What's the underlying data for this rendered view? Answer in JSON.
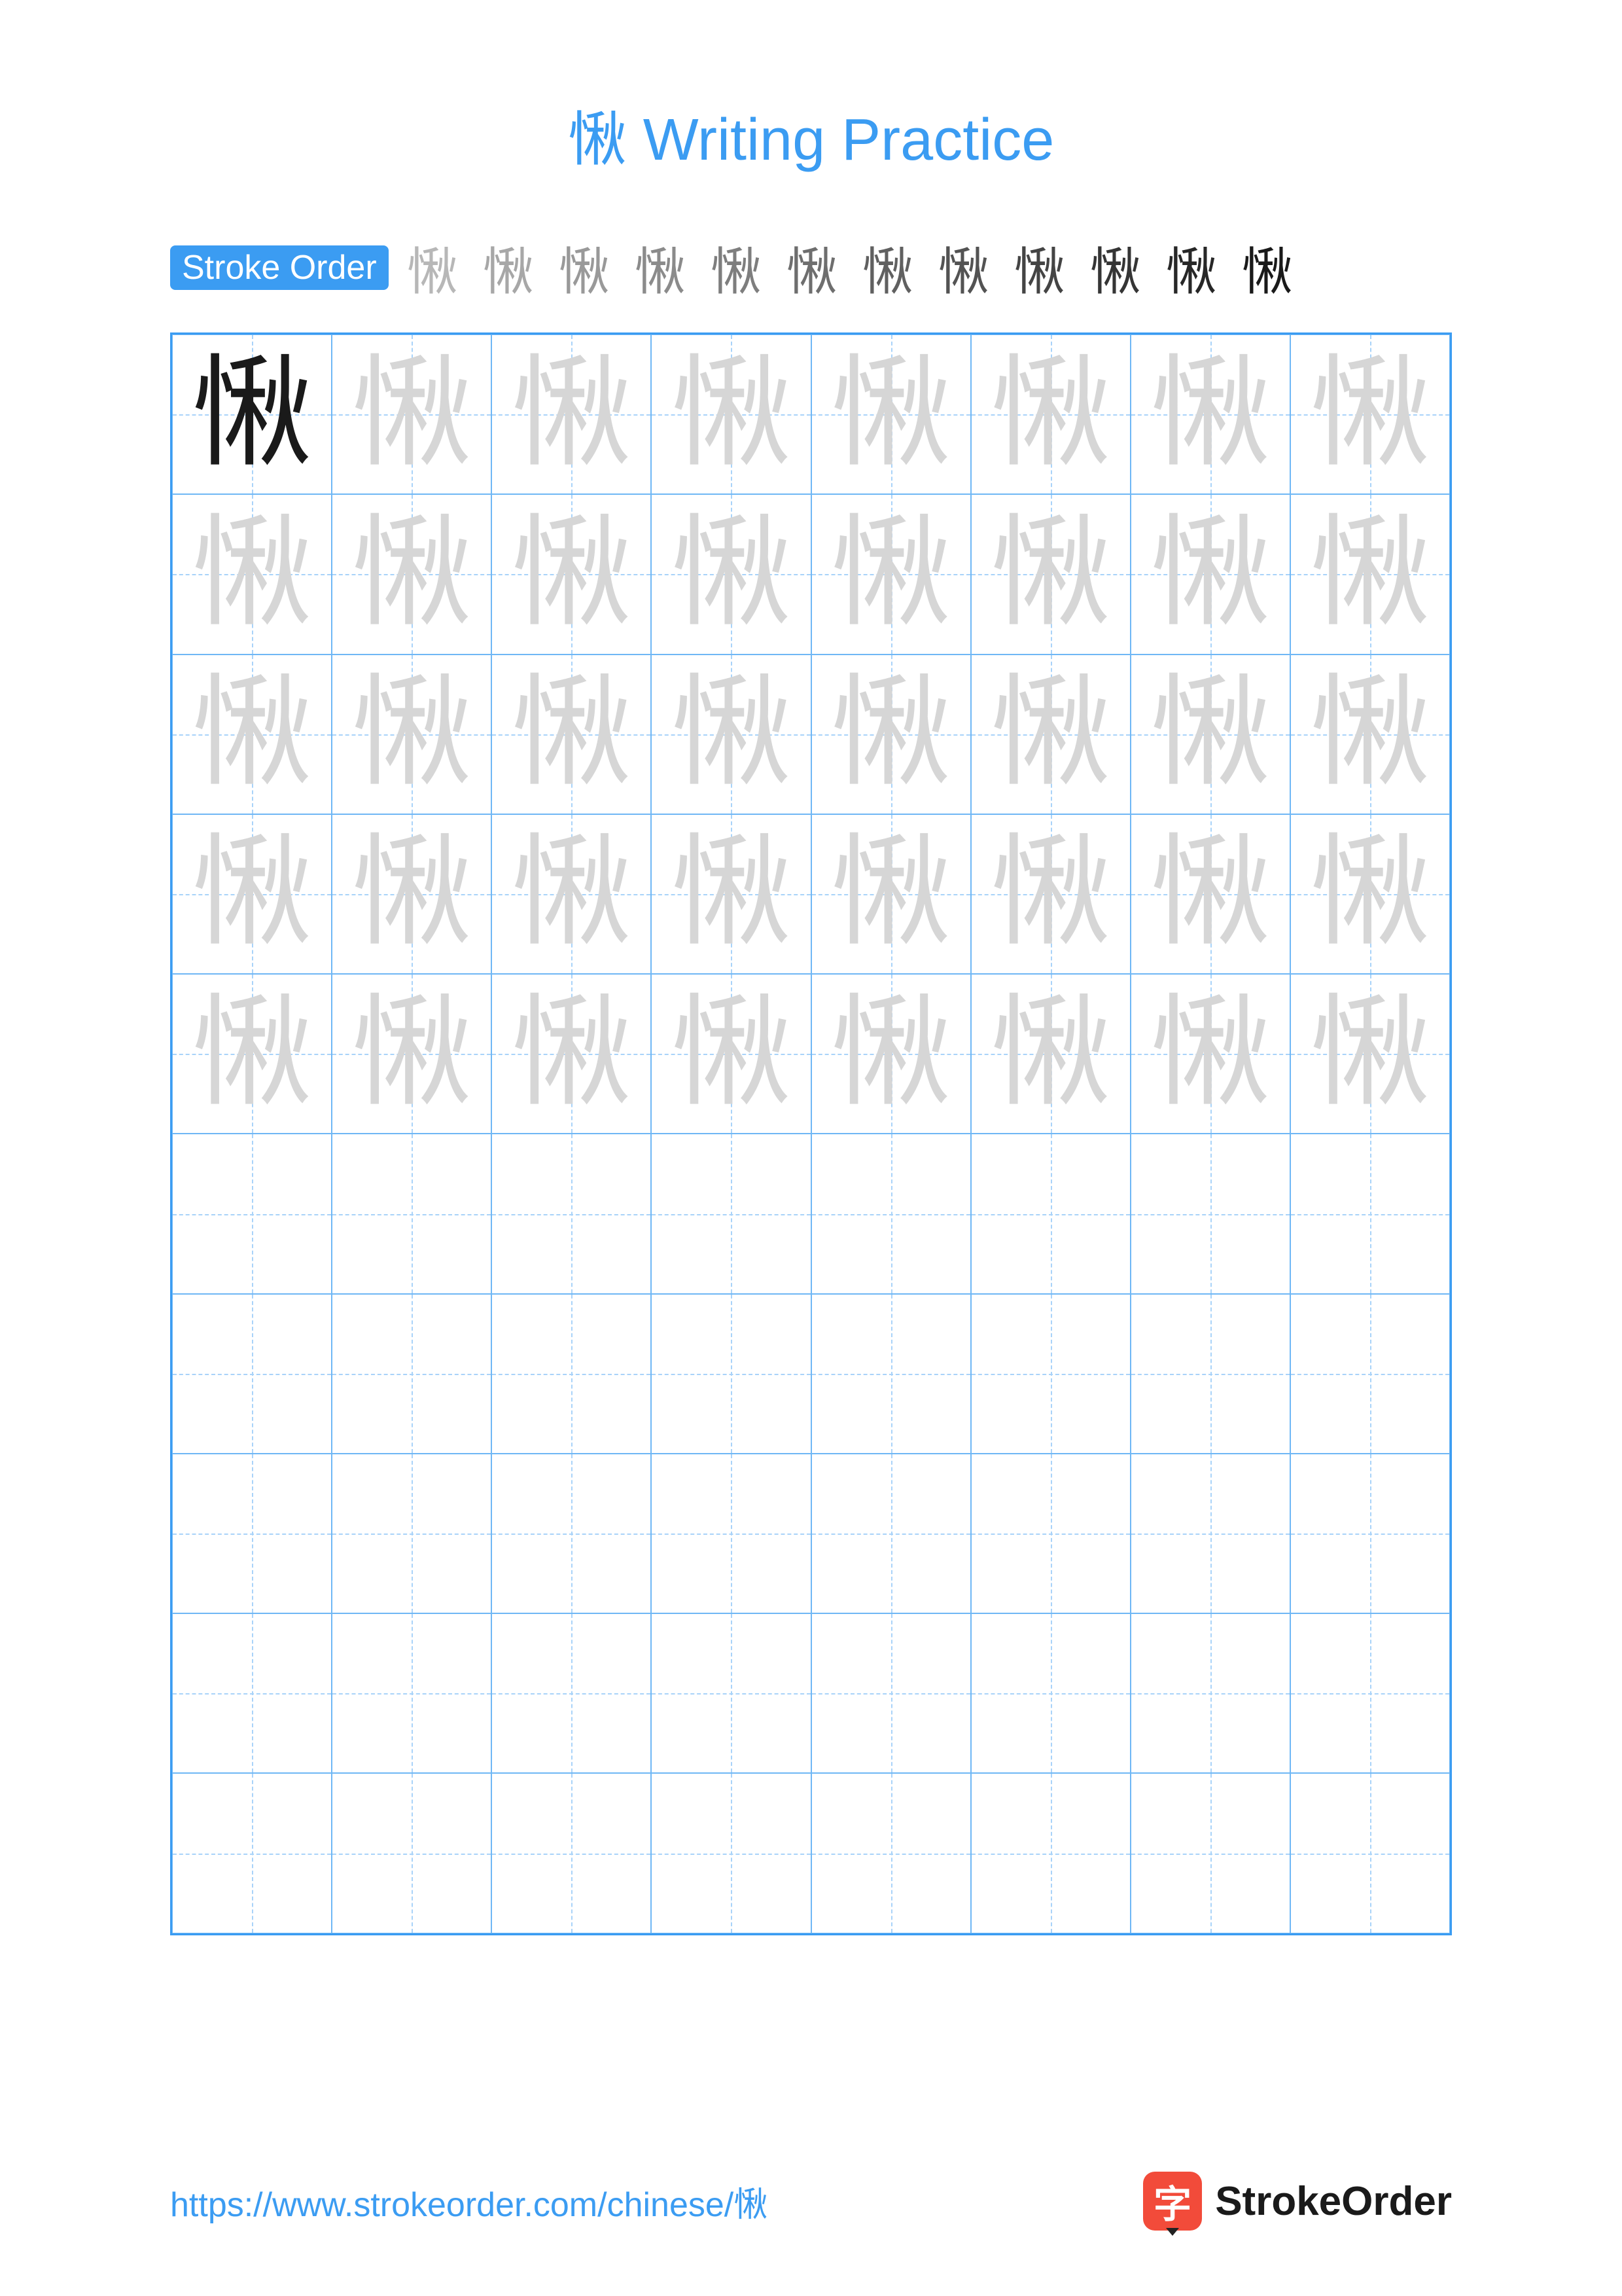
{
  "title": "愀 Writing Practice",
  "character": "愀",
  "colors": {
    "title": "#3b9cf2",
    "label_bg": "#3b9cf2",
    "grid_border": "#3b9cf2",
    "cell_border": "#6fb7f5",
    "guide_dash": "#a9d3f9",
    "char_solid": "#1a1a1a",
    "char_ghost": "#d6d6d6",
    "url": "#3b9cf2",
    "brand_icon_bg": "#f24b3a",
    "brand_text": "#1a1a1a"
  },
  "stroke_label": "Stroke Order",
  "stroke_steps": 12,
  "grid": {
    "cols": 8,
    "rows": 10,
    "ghost_rows": 5
  },
  "footer": {
    "url": "https://www.strokeorder.com/chinese/愀",
    "brand_char": "字",
    "brand_name": "StrokeOrder"
  }
}
